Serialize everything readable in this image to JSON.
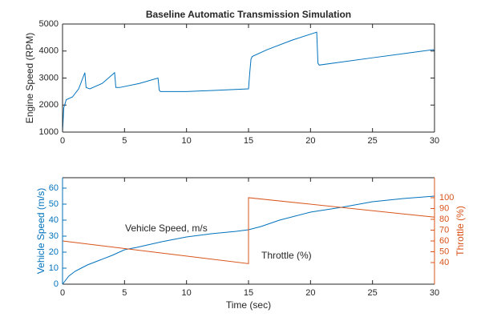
{
  "chart_data": [
    {
      "type": "line",
      "title": "Baseline Automatic Transmission Simulation",
      "ylabel": "Engine Speed (RPM)",
      "xlim": [
        0,
        30
      ],
      "xticks": [
        0,
        5,
        10,
        15,
        20,
        25,
        30
      ],
      "ylim": [
        1000,
        5000
      ],
      "yticks": [
        1000,
        2000,
        3000,
        4000,
        5000
      ],
      "series": [
        {
          "color": "#0072bd",
          "x": [
            0,
            0.1,
            0.3,
            0.8,
            1.3,
            1.8,
            1.9,
            2.2,
            3.2,
            4.2,
            4.3,
            4.6,
            6.2,
            7.7,
            7.8,
            7.9,
            8.5,
            10,
            12.5,
            15,
            15.1,
            15.2,
            15.3,
            16.5,
            18.5,
            20.5,
            20.6,
            20.7,
            25,
            29.9,
            30
          ],
          "values": [
            1000,
            1900,
            2200,
            2300,
            2600,
            3200,
            2650,
            2600,
            2800,
            3200,
            2650,
            2650,
            2800,
            3000,
            2550,
            2500,
            2500,
            2500,
            2550,
            2600,
            3200,
            3700,
            3800,
            4050,
            4400,
            4700,
            3550,
            3480,
            3750,
            4050,
            4000
          ]
        }
      ]
    },
    {
      "type": "line",
      "xlabel": "Time (sec)",
      "ylabel": "Vehicle Speed (m/s)",
      "y2label": "Throttle (%)",
      "xlim": [
        0,
        30
      ],
      "xticks": [
        0,
        5,
        10,
        15,
        20,
        25,
        30
      ],
      "ylim": [
        0,
        66.5
      ],
      "yticks": [
        0,
        10,
        20,
        30,
        40,
        50,
        60
      ],
      "y2lim": [
        20,
        118.5
      ],
      "y2ticks": [
        40,
        50,
        60,
        70,
        80,
        90,
        100
      ],
      "annotations": [
        "Vehicle Speed, m/s",
        "Throttle (%)"
      ],
      "series": [
        {
          "color": "#0072bd",
          "x": [
            0,
            0.5,
            1,
            1.5,
            2,
            3,
            4,
            5,
            6,
            8,
            10,
            12,
            14,
            15,
            16,
            17.5,
            20,
            22.5,
            25,
            27.5,
            30
          ],
          "values": [
            0,
            5,
            8,
            10,
            12,
            15,
            18,
            21.5,
            23,
            26.5,
            29.5,
            31.5,
            33,
            34,
            36,
            40,
            45,
            48,
            51.5,
            53.5,
            55
          ]
        },
        {
          "color": "#d95319",
          "axis": "y2",
          "x": [
            0,
            15,
            15,
            30
          ],
          "values": [
            60,
            39,
            100,
            82
          ]
        }
      ]
    }
  ]
}
